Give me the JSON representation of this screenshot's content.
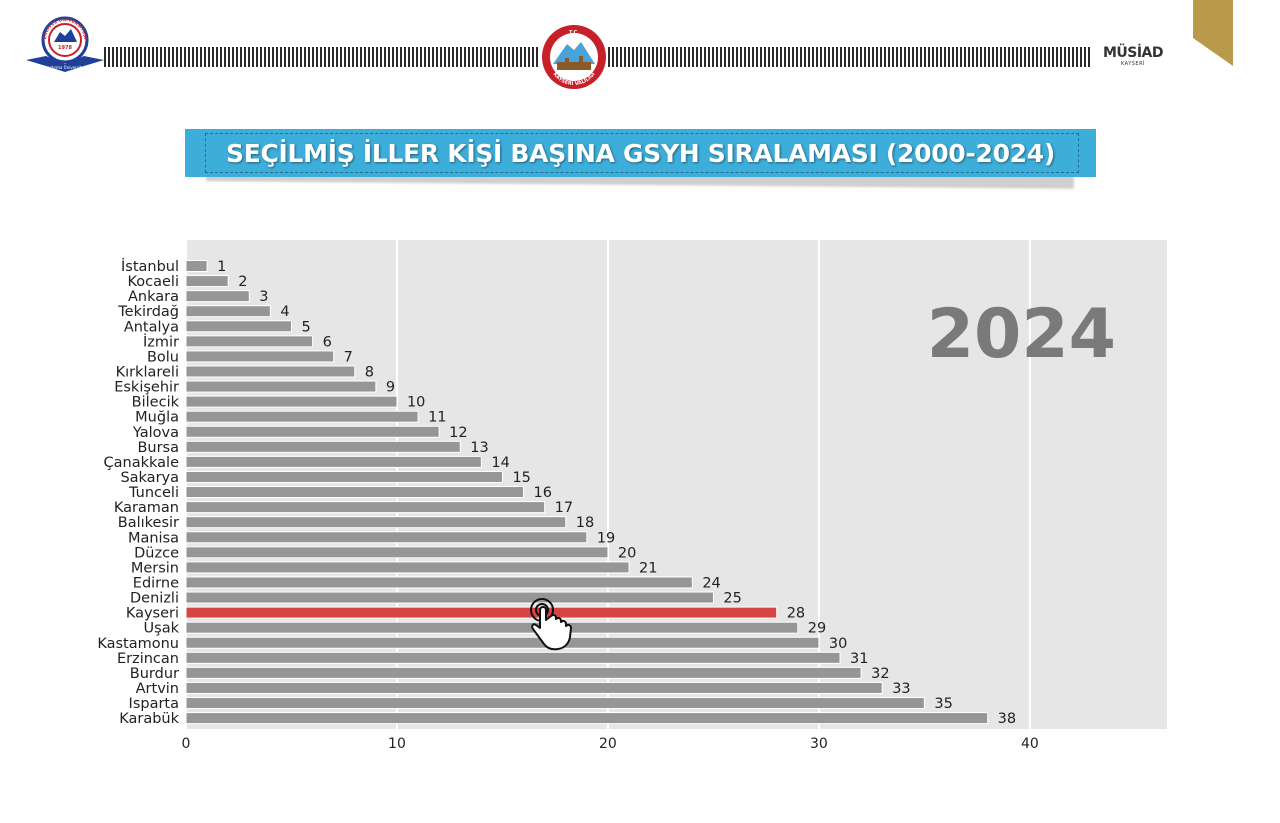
{
  "header": {
    "left_logo_name": "erciyes-university-logo",
    "left_logo_text": "ERCİYES ÜNİVERSİTESİ",
    "left_logo_year": "1978",
    "left_logo_tagline": "Araştırma Üniversitesi",
    "center_logo_name": "kayseri-governorship-seal",
    "center_logo_text_top": "T.C.",
    "center_logo_text_bottom": "KAYSERİ VALİLİĞİ",
    "right_logo_brand": "MÜSİAD",
    "right_logo_city": "KAYSERİ",
    "corner_color": "#b89a4a"
  },
  "banner": {
    "title": "SEÇİLMİŞ İLLER KİŞİ BAŞINA GSYH SIRALAMASI (2000-2024)",
    "color": "#3daed9"
  },
  "chart_data": {
    "type": "bar",
    "orientation": "horizontal",
    "year_label": "2024",
    "categories": [
      "İstanbul",
      "Kocaeli",
      "Ankara",
      "Tekirdağ",
      "Antalya",
      "İzmir",
      "Bolu",
      "Kırklareli",
      "Eskişehir",
      "Bilecik",
      "Muğla",
      "Yalova",
      "Bursa",
      "Çanakkale",
      "Sakarya",
      "Tunceli",
      "Karaman",
      "Balıkesir",
      "Manisa",
      "Düzce",
      "Mersin",
      "Edirne",
      "Denizli",
      "Kayseri",
      "Uşak",
      "Kastamonu",
      "Erzincan",
      "Burdur",
      "Artvin",
      "Isparta",
      "Karabük"
    ],
    "values": [
      1,
      2,
      3,
      4,
      5,
      6,
      7,
      8,
      9,
      10,
      11,
      12,
      13,
      14,
      15,
      16,
      17,
      18,
      19,
      20,
      21,
      24,
      25,
      28,
      29,
      30,
      31,
      32,
      33,
      35,
      38
    ],
    "value_labels": [
      "1",
      "2",
      "3",
      "4",
      "5",
      "6",
      "7",
      "8",
      "9",
      "10",
      "11",
      "12",
      "13",
      "14",
      "15",
      "16",
      "17",
      "18",
      "19",
      "20",
      "21",
      "24",
      "25",
      "28",
      "29",
      "30",
      "31",
      "32",
      "33",
      "35",
      "38"
    ],
    "highlight": "Kayseri",
    "xlim": [
      0,
      46.5
    ],
    "xticks": [
      0,
      10,
      20,
      30,
      40
    ],
    "xtick_labels": [
      "0",
      "10",
      "20",
      "30",
      "40"
    ],
    "grid": true,
    "colors": {
      "bar": "#969696",
      "highlight": "#d64444",
      "background": "#e6e6e6",
      "grid": "#ffffff",
      "year": "#7a7a7a"
    },
    "cursor_icon": "hand-pointer-icon"
  }
}
